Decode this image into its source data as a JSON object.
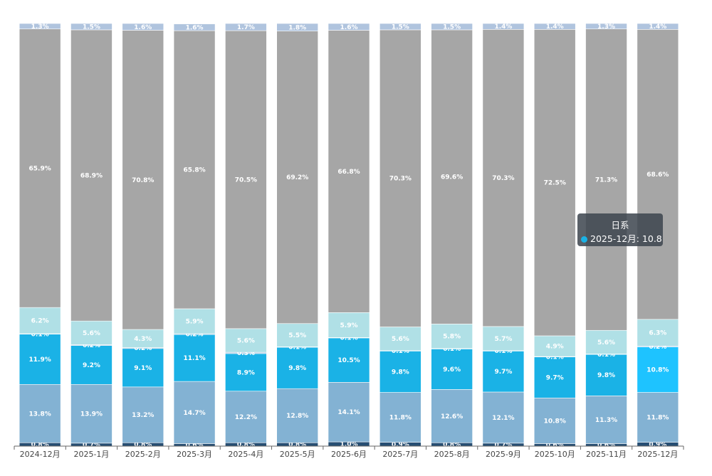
{
  "chart_data": {
    "type": "bar",
    "stacked": true,
    "normalized_percent": true,
    "categories": [
      "2024-12月",
      "2025-1月",
      "2025-2月",
      "2025-3月",
      "2025-4月",
      "2025-5月",
      "2025-6月",
      "2025-7月",
      "2025-8月",
      "2025-9月",
      "2025-10月",
      "2025-11月",
      "2025-12月"
    ],
    "series": [
      {
        "color": "#264e73",
        "values": [
          0.8,
          0.7,
          0.8,
          0.6,
          0.8,
          0.8,
          1.0,
          0.9,
          0.8,
          0.7,
          0.6,
          0.6,
          0.9
        ]
      },
      {
        "color": "#83b2d3",
        "values": [
          13.8,
          13.9,
          13.2,
          14.7,
          12.2,
          12.8,
          14.1,
          11.8,
          12.6,
          12.1,
          10.8,
          11.3,
          11.8
        ]
      },
      {
        "name": "日系",
        "color": "#1ab2e6",
        "highlight_color": "#1ec3ff",
        "values": [
          11.9,
          9.2,
          9.1,
          11.1,
          8.9,
          9.8,
          10.5,
          9.8,
          9.6,
          9.7,
          9.7,
          9.8,
          10.8
        ]
      },
      {
        "color": "#b0c4de",
        "values": [
          0.1,
          0.2,
          0.2,
          0.2,
          0.3,
          0.1,
          0.1,
          0.1,
          0.1,
          0.1,
          0.1,
          0.1,
          0.2
        ]
      },
      {
        "color": "#b0e0e6",
        "values": [
          6.2,
          5.6,
          4.3,
          5.9,
          5.6,
          5.5,
          5.9,
          5.6,
          5.8,
          5.7,
          4.9,
          5.6,
          6.3
        ]
      },
      {
        "color": "#a6a6a6",
        "values": [
          65.9,
          68.9,
          70.8,
          65.8,
          70.5,
          69.2,
          66.8,
          70.3,
          69.6,
          70.3,
          72.5,
          71.3,
          68.6
        ]
      },
      {
        "color": "#b0c4de",
        "values": [
          1.3,
          1.5,
          1.6,
          1.6,
          1.7,
          1.8,
          1.6,
          1.5,
          1.5,
          1.4,
          1.4,
          1.3,
          1.4
        ]
      }
    ],
    "label_suffix": "%",
    "grid": false,
    "legend": "none"
  },
  "tooltip": {
    "title": "日系",
    "text": "2025-12月: 10.8",
    "dot_color": "#1ab2e6"
  }
}
